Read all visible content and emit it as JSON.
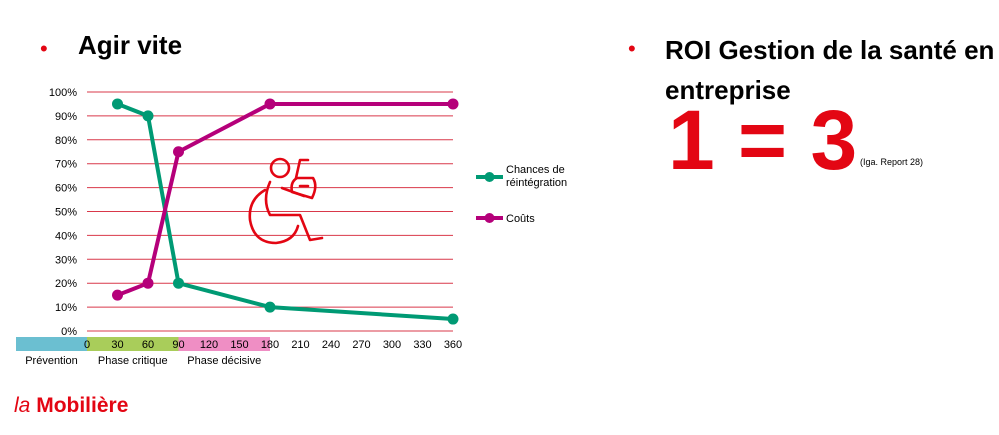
{
  "left": {
    "bullet": "•",
    "heading": "Agir vite"
  },
  "right": {
    "bullet": "•",
    "heading": "ROI Gestion de la santé en entreprise",
    "equation": "1 = 3",
    "source": "(Iga. Report 28)"
  },
  "logo": {
    "prefix": "la",
    "name": "Mobilière"
  },
  "colors": {
    "accent": "#e30613",
    "grid": "#d9384a",
    "series_chances": "#009a74",
    "series_couts": "#b5007a",
    "phase_prevention": "#6bbfd1",
    "phase_critique": "#a9cd5a",
    "phase_decisive": "#ef8ec4"
  },
  "icon": {
    "name": "wheelchair-user-icon"
  },
  "chart_data": {
    "type": "line",
    "x": [
      30,
      60,
      90,
      180,
      360
    ],
    "x_ticks": [
      0,
      30,
      60,
      90,
      120,
      150,
      180,
      210,
      240,
      270,
      300,
      330,
      360
    ],
    "y_ticks": [
      "0%",
      "10%",
      "20%",
      "30%",
      "40%",
      "50%",
      "60%",
      "70%",
      "80%",
      "90%",
      "100%"
    ],
    "xlim": [
      0,
      360
    ],
    "ylim": [
      0,
      100
    ],
    "grid": true,
    "legend": "right",
    "series": [
      {
        "name": "Chances de réintégration",
        "color": "#009a74",
        "values": [
          95,
          90,
          20,
          10,
          5
        ]
      },
      {
        "name": "Coûts",
        "color": "#b5007a",
        "values": [
          15,
          20,
          75,
          95,
          95
        ]
      }
    ],
    "phases": [
      {
        "label": "Prévention",
        "from": -75,
        "to": 0,
        "color": "#6bbfd1"
      },
      {
        "label": "Phase critique",
        "from": 0,
        "to": 90,
        "color": "#a9cd5a"
      },
      {
        "label": "Phase décisive",
        "from": 90,
        "to": 180,
        "color": "#ef8ec4"
      }
    ]
  }
}
